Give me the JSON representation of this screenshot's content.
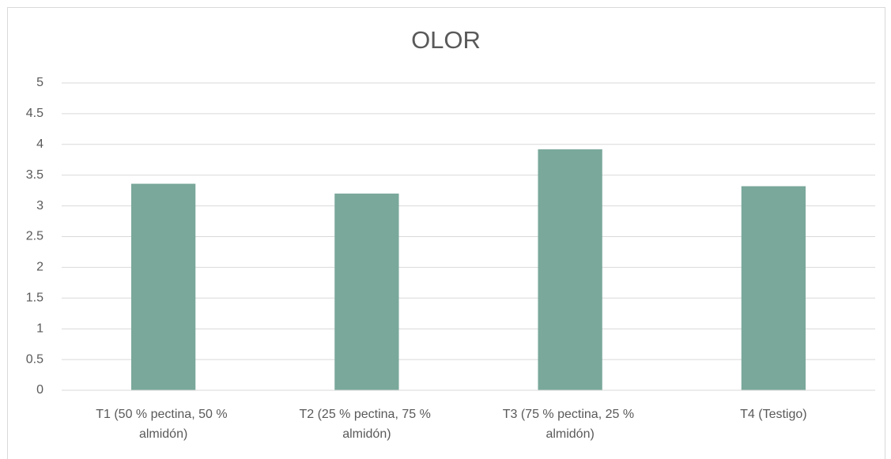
{
  "chart_data": {
    "type": "bar",
    "title": "OLOR",
    "categories": [
      "T1 (50 % pectina, 50 % almidón)",
      "T2 (25 % pectina, 75 % almidón)",
      "T3 (75 % pectina, 25 % almidón)",
      "T4 (Testigo)"
    ],
    "values": [
      3.36,
      3.2,
      3.92,
      3.32
    ],
    "color": "#7aa89b",
    "ylim": [
      0,
      5
    ],
    "yticks": [
      0,
      0.5,
      1,
      1.5,
      2,
      2.5,
      3,
      3.5,
      4,
      4.5,
      5
    ],
    "grid": true
  }
}
